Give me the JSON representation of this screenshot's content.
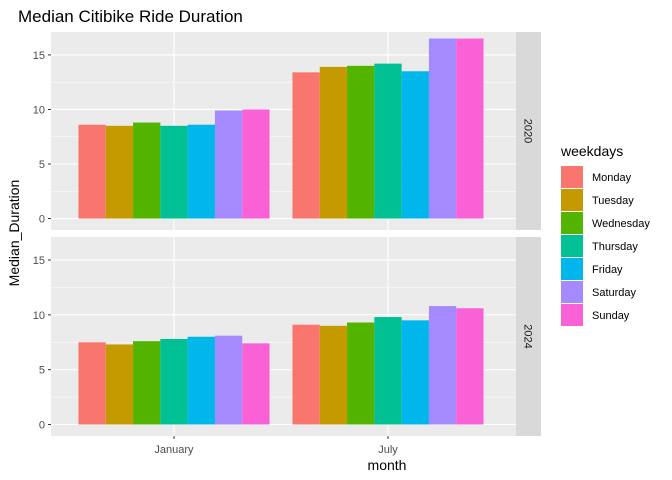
{
  "chart_data": {
    "type": "bar",
    "title": "Median Citibike Ride Duration",
    "xlabel": "month",
    "ylabel": "Median_Duration",
    "ylim": [
      0,
      17
    ],
    "yticks": [
      0,
      5,
      10,
      15
    ],
    "categories": [
      "January",
      "July"
    ],
    "legend": {
      "title": "weekdays",
      "placement": "right",
      "entries": [
        {
          "name": "Monday",
          "color": "#F8766D"
        },
        {
          "name": "Tuesday",
          "color": "#C49A00"
        },
        {
          "name": "Wednesday",
          "color": "#53B400"
        },
        {
          "name": "Thursday",
          "color": "#00C094"
        },
        {
          "name": "Friday",
          "color": "#00B6EB"
        },
        {
          "name": "Saturday",
          "color": "#A58AFF"
        },
        {
          "name": "Sunday",
          "color": "#FB61D7"
        }
      ]
    },
    "facets": [
      {
        "label": "2020",
        "series": [
          {
            "name": "Monday",
            "values": [
              8.6,
              13.4
            ]
          },
          {
            "name": "Tuesday",
            "values": [
              8.5,
              13.9
            ]
          },
          {
            "name": "Wednesday",
            "values": [
              8.8,
              14.0
            ]
          },
          {
            "name": "Thursday",
            "values": [
              8.5,
              14.2
            ]
          },
          {
            "name": "Friday",
            "values": [
              8.6,
              13.5
            ]
          },
          {
            "name": "Saturday",
            "values": [
              9.9,
              16.5
            ]
          },
          {
            "name": "Sunday",
            "values": [
              10.0,
              16.5
            ]
          }
        ]
      },
      {
        "label": "2024",
        "series": [
          {
            "name": "Monday",
            "values": [
              7.5,
              9.1
            ]
          },
          {
            "name": "Tuesday",
            "values": [
              7.3,
              9.0
            ]
          },
          {
            "name": "Wednesday",
            "values": [
              7.6,
              9.3
            ]
          },
          {
            "name": "Thursday",
            "values": [
              7.8,
              9.8
            ]
          },
          {
            "name": "Friday",
            "values": [
              8.0,
              9.5
            ]
          },
          {
            "name": "Saturday",
            "values": [
              8.1,
              10.8
            ]
          },
          {
            "name": "Sunday",
            "values": [
              7.4,
              10.6
            ]
          }
        ]
      }
    ],
    "grid": true,
    "colors": {
      "panel_background": "#EBEBEB",
      "strip_background": "#D9D9D9",
      "grid_major": "#FFFFFF"
    }
  }
}
